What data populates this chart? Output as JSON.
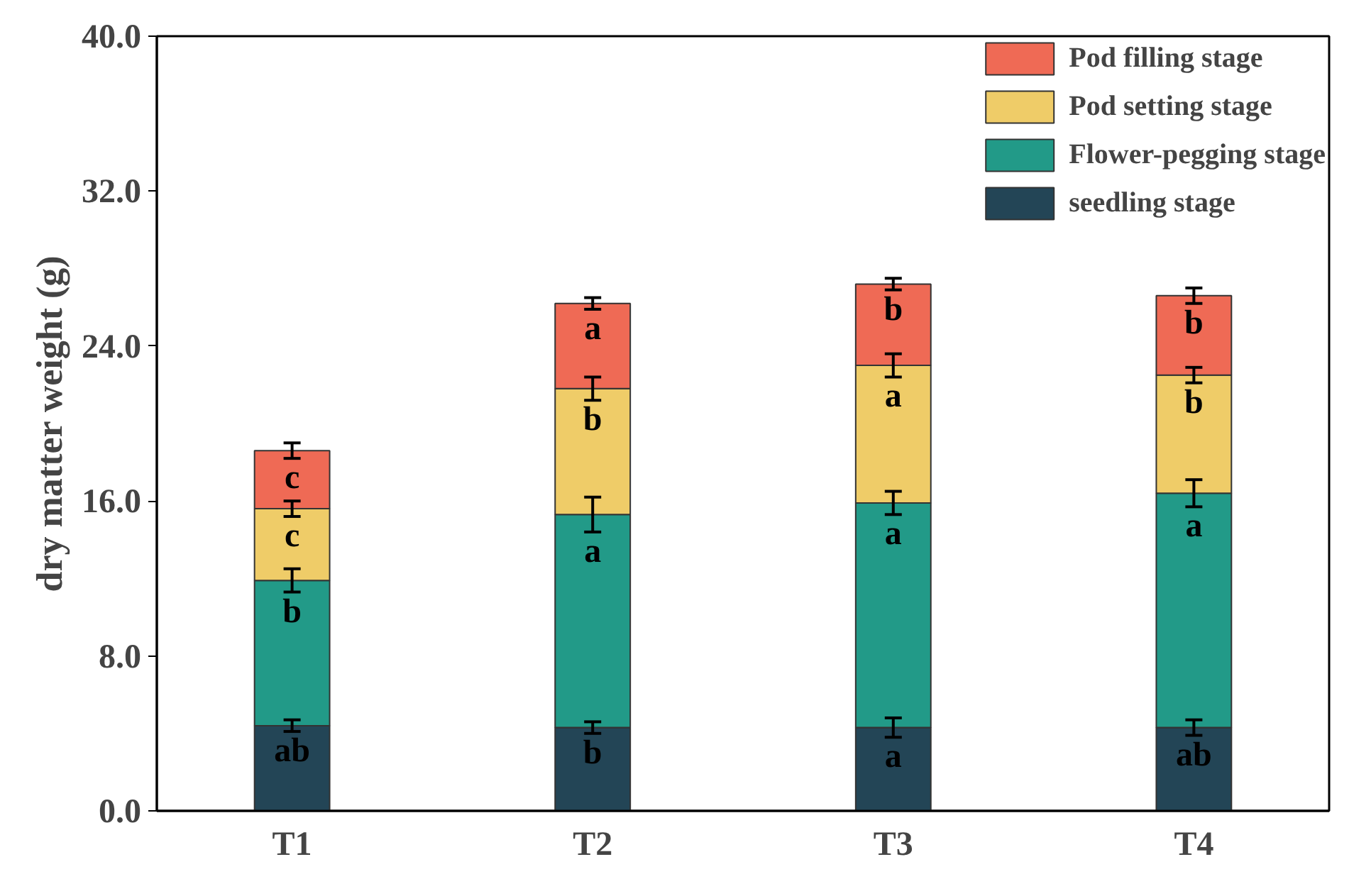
{
  "chart_data": {
    "type": "bar",
    "stacked": true,
    "ylabel": "dry matter weight (g)",
    "categories": [
      "T1",
      "T2",
      "T3",
      "T4"
    ],
    "series": [
      {
        "name": "seedling stage",
        "color": "#234556",
        "values": [
          4.4,
          4.3,
          4.3,
          4.3
        ],
        "errors": [
          0.3,
          0.3,
          0.5,
          0.4
        ],
        "value_labels": [
          "ab",
          "b",
          "a",
          "ab"
        ]
      },
      {
        "name": "Flower-pegging stage",
        "color": "#229a88",
        "values": [
          7.5,
          11.0,
          11.6,
          12.1
        ],
        "errors": [
          0.6,
          0.9,
          0.6,
          0.7
        ],
        "value_labels": [
          "b",
          "a",
          "a",
          "a"
        ]
      },
      {
        "name": "Pod setting stage",
        "color": "#efcc68",
        "values": [
          3.7,
          6.5,
          7.1,
          6.1
        ],
        "errors": [
          0.4,
          0.6,
          0.6,
          0.4
        ],
        "value_labels": [
          "c",
          "b",
          "a",
          "b"
        ]
      },
      {
        "name": "Pod filling stage",
        "color": "#ef6a55",
        "values": [
          3.0,
          4.4,
          4.2,
          4.1
        ],
        "errors": [
          0.4,
          0.3,
          0.3,
          0.4
        ],
        "value_labels": [
          "c",
          "a",
          "b",
          "b"
        ]
      }
    ],
    "ylim": [
      0,
      40
    ],
    "yticks": [
      {
        "value": 0,
        "label": "0.0"
      },
      {
        "value": 8,
        "label": "8.0"
      },
      {
        "value": 16,
        "label": "16.0"
      },
      {
        "value": 24,
        "label": "24.0"
      },
      {
        "value": 32,
        "label": "32.0"
      },
      {
        "value": 40,
        "label": "40.0"
      }
    ],
    "grid": false,
    "legend": "top right"
  }
}
